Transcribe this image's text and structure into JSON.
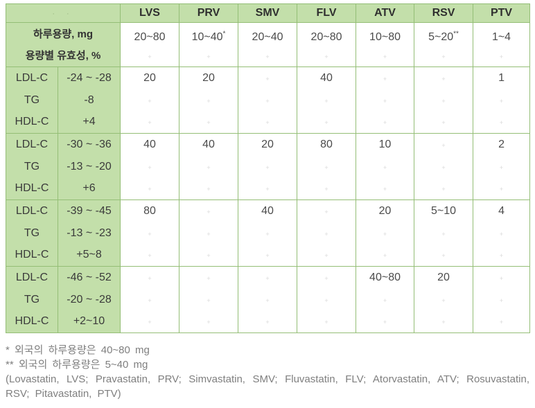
{
  "colors": {
    "cell_green": "#c3dfaa",
    "border_green": "#94be76",
    "header_text": "#2f2f2f",
    "value_text": "#4b4b4b",
    "footnote_text": "#7f7f7f",
    "empty_mark": "#d9d9d9"
  },
  "table": {
    "corner_dots": "· ·",
    "columns": [
      "LVS",
      "PRV",
      "SMV",
      "FLV",
      "ATV",
      "RSV",
      "PTV"
    ],
    "dose_label": "하루용량, mg",
    "efficacy_label": "용량별 유효성, %",
    "doses": [
      "20~80",
      "10~40",
      "20~40",
      "20~80",
      "10~80",
      "5~20",
      "1~4"
    ],
    "dose_sups": [
      "",
      "*",
      "",
      "",
      "",
      "**",
      ""
    ],
    "empty_mark": "+",
    "blocks": [
      {
        "rows": [
          {
            "metric": "LDL-C",
            "range": "-24 ~ -28",
            "values": [
              "20",
              "20",
              "",
              "40",
              "",
              "",
              "1"
            ]
          },
          {
            "metric": "TG",
            "range": "-8",
            "values": [
              "",
              "",
              "",
              "",
              "",
              "",
              ""
            ]
          },
          {
            "metric": "HDL-C",
            "range": "+4",
            "values": [
              "",
              "",
              "",
              "",
              "",
              "",
              ""
            ]
          }
        ]
      },
      {
        "rows": [
          {
            "metric": "LDL-C",
            "range": "-30 ~ -36",
            "values": [
              "40",
              "40",
              "20",
              "80",
              "10",
              "",
              "2"
            ]
          },
          {
            "metric": "TG",
            "range": "-13 ~ -20",
            "values": [
              "",
              "",
              "",
              "",
              "",
              "",
              ""
            ]
          },
          {
            "metric": "HDL-C",
            "range": "+6",
            "values": [
              "",
              "",
              "",
              "",
              "",
              "",
              ""
            ]
          }
        ]
      },
      {
        "rows": [
          {
            "metric": "LDL-C",
            "range": "-39 ~ -45",
            "values": [
              "80",
              "",
              "40",
              "",
              "20",
              "5~10",
              "4"
            ]
          },
          {
            "metric": "TG",
            "range": "-13 ~ -23",
            "values": [
              "",
              "",
              "",
              "",
              "",
              "",
              ""
            ]
          },
          {
            "metric": "HDL-C",
            "range": "+5~8",
            "values": [
              "",
              "",
              "",
              "",
              "",
              "",
              ""
            ]
          }
        ]
      },
      {
        "rows": [
          {
            "metric": "LDL-C",
            "range": "-46 ~ -52",
            "values": [
              "",
              "",
              "",
              "",
              "40~80",
              "20",
              ""
            ]
          },
          {
            "metric": "TG",
            "range": "-20 ~ -28",
            "values": [
              "",
              "",
              "",
              "",
              "",
              "",
              ""
            ]
          },
          {
            "metric": "HDL-C",
            "range": "+2~10",
            "values": [
              "",
              "",
              "",
              "",
              "",
              "",
              ""
            ]
          }
        ]
      }
    ]
  },
  "footnotes": {
    "note1": "* 외국의 하루용량은 40~80 mg",
    "note2": "** 외국의 하루용량은 5~40 mg",
    "abbreviations": "(Lovastatin, LVS; Pravastatin, PRV; Simvastatin, SMV; Fluvastatin, FLV; Atorvastatin, ATV; Rosuvastatin, RSV; Pitavastatin, PTV)"
  }
}
